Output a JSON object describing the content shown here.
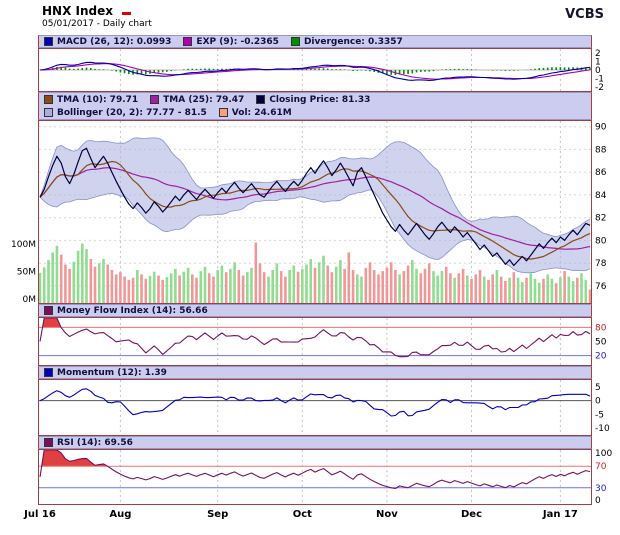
{
  "header": {
    "title": "HNX Index",
    "subtitle": "05/01/2017 - Daily chart",
    "brand": "VCBS"
  },
  "legends": {
    "macd": [
      {
        "color": "#0000b0",
        "label": "MACD (26, 12): 0.0993"
      },
      {
        "color": "#b000b0",
        "label": "EXP (9): -0.2365"
      },
      {
        "color": "#009000",
        "label": "Divergence: 0.3357"
      }
    ],
    "price_row1": [
      {
        "color": "#8a4a1a",
        "label": "TMA (10): 79.71"
      },
      {
        "color": "#a020a0",
        "label": "TMA (25): 79.47"
      },
      {
        "color": "#00003c",
        "label": "Closing Price: 81.33"
      }
    ],
    "price_row2": [
      {
        "color": "#a8aede",
        "label": "Bollinger (20, 2): 77.77 - 81.5"
      },
      {
        "color": "#f8a080",
        "label": "Vol: 24.61M"
      }
    ],
    "mfi": [
      {
        "color": "#781060",
        "label": "Money Flow Index (14): 56.66"
      }
    ],
    "momentum": [
      {
        "color": "#0000c0",
        "label": "Momentum (12): 1.39"
      }
    ],
    "rsi": [
      {
        "color": "#781060",
        "label": "RSI (14): 69.56"
      }
    ]
  },
  "colors": {
    "frame": "#a04040",
    "grid": "#c4c4c4",
    "legend_bg": "#ccccee",
    "legend_border": "#9898c8",
    "close": "#00003c",
    "tma10": "#8a4a1a",
    "tma25": "#a020a0",
    "boll_fill": "#a8aede",
    "boll_edge": "#8890cc",
    "vol_up": "#90dc90",
    "vol_down": "#f09898",
    "macd": "#0000b0",
    "exp": "#b000b0",
    "divergence": "#009000",
    "mfi": "#781060",
    "momentum": "#0000c0",
    "rsi": "#781060",
    "overbought": "#f07070",
    "oversold": "#7070f0",
    "ob_fill": "#e04040",
    "os_fill": "#5050e8",
    "zero_line": "#555555"
  },
  "chart_data": {
    "type": "line",
    "title": "HNX Index - Daily chart - 05/01/2017",
    "x": {
      "points": 131,
      "month_ticks": [
        {
          "label": "Jul 16",
          "i": 0,
          "bold": true
        },
        {
          "label": "Aug",
          "i": 19,
          "bold": true
        },
        {
          "label": "Sep",
          "i": 42,
          "bold": true
        },
        {
          "label": "Oct",
          "i": 62,
          "bold": true
        },
        {
          "label": "Nov",
          "i": 82,
          "bold": true
        },
        {
          "label": "Dec",
          "i": 102,
          "bold": true
        },
        {
          "label": "Jan 17",
          "i": 123,
          "bold": true
        }
      ]
    },
    "close": [
      83.8,
      84.5,
      85.6,
      86.6,
      87.4,
      86.8,
      85.6,
      85.0,
      85.8,
      86.9,
      87.9,
      88.1,
      87.2,
      86.4,
      86.9,
      87.4,
      86.8,
      86.0,
      85.2,
      84.5,
      83.8,
      83.2,
      82.8,
      83.3,
      82.9,
      82.4,
      82.8,
      83.4,
      83.0,
      82.5,
      82.9,
      83.4,
      83.9,
      83.5,
      84.0,
      84.4,
      84.0,
      83.6,
      84.1,
      84.5,
      84.1,
      83.7,
      84.2,
      84.6,
      84.2,
      84.7,
      85.1,
      84.6,
      84.2,
      84.6,
      85.0,
      84.5,
      84.0,
      83.8,
      84.3,
      84.8,
      85.2,
      84.7,
      84.3,
      84.8,
      85.2,
      84.8,
      85.3,
      85.9,
      86.4,
      85.9,
      86.5,
      87.0,
      86.4,
      85.7,
      86.2,
      86.8,
      86.2,
      85.5,
      84.8,
      86.0,
      86.4,
      85.6,
      84.8,
      84.0,
      83.2,
      82.4,
      81.8,
      81.2,
      80.8,
      81.4,
      80.9,
      80.5,
      81.0,
      81.5,
      81.0,
      80.5,
      80.1,
      80.6,
      81.2,
      81.6,
      81.1,
      80.7,
      81.2,
      80.8,
      80.3,
      80.7,
      80.2,
      79.7,
      79.2,
      79.6,
      79.1,
      78.6,
      78.9,
      78.4,
      77.9,
      78.3,
      77.8,
      78.2,
      78.6,
      78.2,
      78.7,
      79.2,
      79.7,
      79.3,
      79.8,
      80.2,
      79.8,
      80.3,
      80.0,
      80.5,
      80.9,
      80.5,
      81.0,
      81.5,
      81.33
    ],
    "volume_m": [
      55,
      65,
      78,
      92,
      104,
      88,
      70,
      62,
      75,
      95,
      108,
      98,
      80,
      66,
      72,
      80,
      70,
      60,
      52,
      56,
      48,
      42,
      46,
      60,
      52,
      44,
      49,
      57,
      50,
      42,
      47,
      54,
      62,
      50,
      57,
      64,
      52,
      46,
      58,
      66,
      54,
      48,
      60,
      68,
      56,
      62,
      74,
      60,
      50,
      56,
      64,
      110,
      72,
      56,
      48,
      60,
      72,
      58,
      48,
      60,
      68,
      57,
      62,
      70,
      80,
      64,
      74,
      86,
      68,
      56,
      66,
      78,
      62,
      92,
      60,
      52,
      48,
      64,
      74,
      60,
      52,
      58,
      64,
      74,
      60,
      52,
      58,
      68,
      78,
      62,
      54,
      62,
      72,
      58,
      50,
      58,
      66,
      54,
      46,
      54,
      62,
      50,
      44,
      52,
      60,
      48,
      42,
      52,
      60,
      48,
      40,
      46,
      56,
      46,
      38,
      46,
      54,
      44,
      37,
      44,
      52,
      44,
      36,
      46,
      58,
      48,
      40,
      46,
      54,
      42,
      24.6
    ],
    "panels": {
      "macd": {
        "ylim": [
          -2.5,
          2.5
        ],
        "yticks": [
          {
            "v": 2,
            "label": "2"
          },
          {
            "v": 1,
            "label": "1"
          },
          {
            "v": 0,
            "label": "0"
          },
          {
            "v": -1,
            "label": "-1"
          },
          {
            "v": -2,
            "label": "-2"
          }
        ],
        "macd": 0.0993,
        "exp9": -0.2365,
        "divergence": 0.3357
      },
      "price": {
        "ylim": [
          74.5,
          90.5
        ],
        "yticks": [
          {
            "v": 90,
            "label": "90"
          },
          {
            "v": 88,
            "label": "88"
          },
          {
            "v": 86,
            "label": "86"
          },
          {
            "v": 84,
            "label": "84"
          },
          {
            "v": 82,
            "label": "82"
          },
          {
            "v": 80,
            "label": "80"
          },
          {
            "v": 78,
            "label": "78"
          },
          {
            "v": 76,
            "label": "76"
          }
        ],
        "vol_ticks": [
          {
            "v": 100,
            "label": "100M"
          },
          {
            "v": 50,
            "label": "50M"
          },
          {
            "v": 0,
            "label": "0M"
          }
        ],
        "tma10": 79.71,
        "tma25": 79.47,
        "closing_price": 81.33,
        "bollinger": "77.77 - 81.5",
        "volume": "24.61M"
      },
      "mfi": {
        "ylim": [
          0,
          100
        ],
        "yticks": [
          {
            "v": 80,
            "label": "80",
            "color": "#cc2020"
          },
          {
            "v": 50,
            "label": "50"
          },
          {
            "v": 20,
            "label": "20",
            "color": "#2020cc"
          }
        ],
        "value": 56.66,
        "overbought": 80,
        "oversold": 20
      },
      "momentum": {
        "ylim": [
          -12.5,
          7.5
        ],
        "yticks": [
          {
            "v": 5,
            "label": "5"
          },
          {
            "v": 0,
            "label": "0"
          },
          {
            "v": -5,
            "label": "-5"
          },
          {
            "v": -10,
            "label": "-10"
          }
        ],
        "value": 1.39
      },
      "rsi": {
        "ylim": [
          0,
          100
        ],
        "yticks": [
          {
            "v": 100,
            "label": "100"
          },
          {
            "v": 70,
            "label": "70",
            "color": "#cc2020"
          },
          {
            "v": 30,
            "label": "30",
            "color": "#2020cc"
          },
          {
            "v": 0,
            "label": "0"
          }
        ],
        "value": 69.56,
        "overbought": 70,
        "oversold": 30
      }
    }
  }
}
